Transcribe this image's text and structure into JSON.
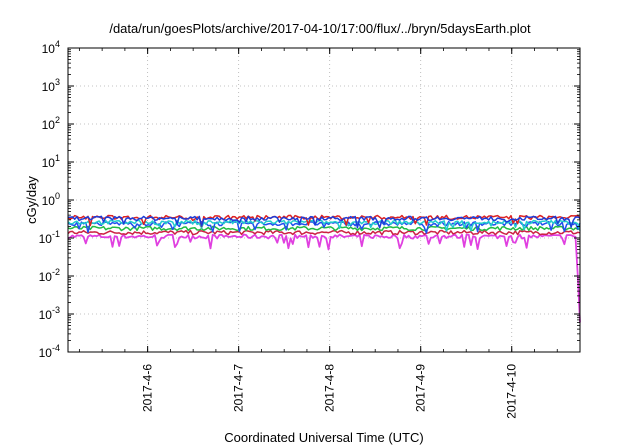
{
  "chart_data": {
    "type": "line",
    "title": "/data/run/goesPlots/archive/2017-04-10/17:00/flux/../bryn/5daysEarth.plot",
    "xlabel": "Coordinated Universal Time (UTC)",
    "ylabel": "cGy/day",
    "yscale": "log",
    "ylim": [
      0.0001,
      10000
    ],
    "y_ticks": [
      {
        "base": "10",
        "exp": "-4",
        "value": 0.0001
      },
      {
        "base": "10",
        "exp": "-3",
        "value": 0.001
      },
      {
        "base": "10",
        "exp": "-2",
        "value": 0.01
      },
      {
        "base": "10",
        "exp": "-1",
        "value": 0.1
      },
      {
        "base": "10",
        "exp": "0",
        "value": 1
      },
      {
        "base": "10",
        "exp": "1",
        "value": 10
      },
      {
        "base": "10",
        "exp": "2",
        "value": 100
      },
      {
        "base": "10",
        "exp": "3",
        "value": 1000
      },
      {
        "base": "10",
        "exp": "4",
        "value": 10000
      }
    ],
    "xlim": [
      "2017-04-05T03:00",
      "2017-04-10T18:00"
    ],
    "x_ticks": [
      {
        "label": "2017-4-6",
        "value": "2017-04-06T00:00"
      },
      {
        "label": "2017-4-7",
        "value": "2017-04-07T00:00"
      },
      {
        "label": "2017-4-8",
        "value": "2017-04-08T00:00"
      },
      {
        "label": "2017-4-9",
        "value": "2017-04-09T00:00"
      },
      {
        "label": "2017-4-10",
        "value": "2017-04-10T00:00"
      }
    ],
    "grid": true,
    "series": [
      {
        "color": "#e040e0",
        "level": 0.11,
        "variation": "large downward dips to ~0.05, final drop to ~0.0006 at 2017-04-10T17:45"
      },
      {
        "color": "#cc2244",
        "level": 0.14,
        "variation": "small"
      },
      {
        "color": "#22bb44",
        "level": 0.18,
        "variation": "small"
      },
      {
        "color": "#2050ee",
        "level": 0.24,
        "variation": "moderate, dips to ~0.1"
      },
      {
        "color": "#22cccc",
        "level": 0.26,
        "variation": "moderate, dips to ~0.12"
      },
      {
        "color": "#dd2222",
        "level": 0.35,
        "variation": "moderate"
      },
      {
        "color": "#1c3cd8",
        "level": 0.33,
        "variation": "moderate, dips to ~0.15"
      }
    ]
  }
}
